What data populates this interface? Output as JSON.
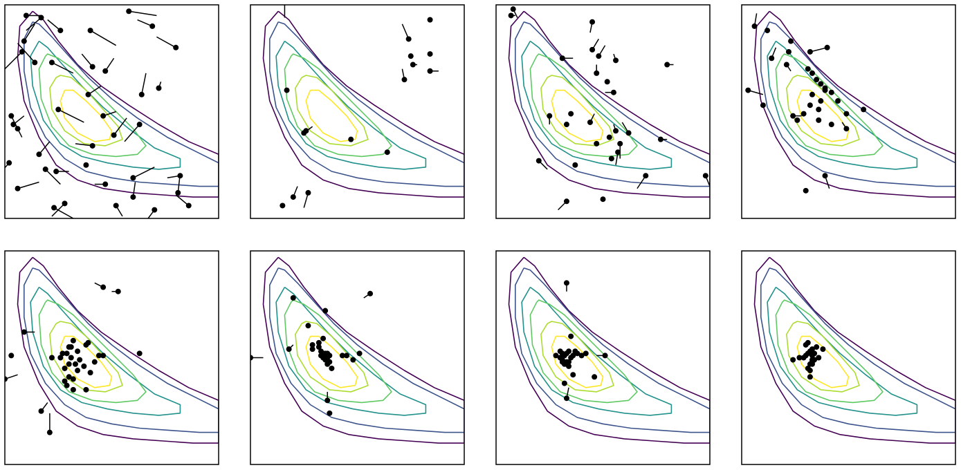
{
  "chart_data": {
    "type": "scatter",
    "description_free": true,
    "grid": false,
    "legend": "none",
    "panel_count": 8,
    "xlim": [
      0,
      1
    ],
    "ylim": [
      0,
      1
    ],
    "contour": {
      "levels": 6,
      "colors": [
        "#440154",
        "#3b528b",
        "#21918c",
        "#5ec962",
        "#addc30",
        "#fde725"
      ],
      "rings": [
        {
          "x": [
            0.13,
            0.07,
            0.06,
            0.09,
            0.16,
            0.24,
            0.34,
            0.46,
            0.6,
            0.74,
            0.88,
            1.0,
            1.0,
            0.86,
            0.72,
            0.58,
            0.45,
            0.34,
            0.25,
            0.18,
            0.13
          ],
          "y": [
            0.97,
            0.9,
            0.75,
            0.55,
            0.38,
            0.25,
            0.18,
            0.14,
            0.12,
            0.11,
            0.1,
            0.1,
            0.3,
            0.36,
            0.44,
            0.53,
            0.62,
            0.72,
            0.83,
            0.93,
            0.97
          ]
        },
        {
          "x": [
            0.13,
            0.09,
            0.09,
            0.12,
            0.19,
            0.28,
            0.38,
            0.5,
            0.63,
            0.77,
            0.91,
            1.0,
            1.0,
            0.9,
            0.76,
            0.62,
            0.5,
            0.39,
            0.3,
            0.22,
            0.16,
            0.13
          ],
          "y": [
            0.92,
            0.84,
            0.69,
            0.52,
            0.38,
            0.28,
            0.22,
            0.19,
            0.17,
            0.16,
            0.15,
            0.15,
            0.26,
            0.31,
            0.38,
            0.47,
            0.56,
            0.66,
            0.76,
            0.85,
            0.91,
            0.92
          ]
        },
        {
          "x": [
            0.16,
            0.12,
            0.13,
            0.18,
            0.26,
            0.36,
            0.48,
            0.6,
            0.72,
            0.82,
            0.82,
            0.7,
            0.58,
            0.46,
            0.36,
            0.27,
            0.2,
            0.16
          ],
          "y": [
            0.83,
            0.76,
            0.62,
            0.46,
            0.35,
            0.29,
            0.26,
            0.24,
            0.23,
            0.24,
            0.28,
            0.33,
            0.42,
            0.52,
            0.62,
            0.72,
            0.8,
            0.83
          ]
        },
        {
          "x": [
            0.19,
            0.16,
            0.17,
            0.22,
            0.3,
            0.41,
            0.52,
            0.62,
            0.66,
            0.6,
            0.5,
            0.4,
            0.32,
            0.25,
            0.2,
            0.19
          ],
          "y": [
            0.76,
            0.7,
            0.56,
            0.43,
            0.34,
            0.3,
            0.29,
            0.3,
            0.34,
            0.42,
            0.52,
            0.62,
            0.7,
            0.75,
            0.77,
            0.76
          ]
        },
        {
          "x": [
            0.24,
            0.21,
            0.22,
            0.28,
            0.37,
            0.47,
            0.55,
            0.53,
            0.46,
            0.38,
            0.31,
            0.26,
            0.24
          ],
          "y": [
            0.66,
            0.61,
            0.51,
            0.41,
            0.35,
            0.34,
            0.37,
            0.43,
            0.51,
            0.6,
            0.66,
            0.67,
            0.66
          ]
        },
        {
          "x": [
            0.28,
            0.26,
            0.28,
            0.34,
            0.42,
            0.49,
            0.5,
            0.45,
            0.38,
            0.32,
            0.28
          ],
          "y": [
            0.6,
            0.55,
            0.47,
            0.4,
            0.36,
            0.37,
            0.41,
            0.48,
            0.55,
            0.6,
            0.6
          ]
        }
      ]
    },
    "panels": [
      {
        "x": [
          0.1,
          0.17,
          0.26,
          0.08,
          0.58,
          0.4,
          0.09,
          0.14,
          0.22,
          0.8,
          0.69,
          0.64,
          0.03,
          0.06,
          0.16,
          0.24,
          0.41,
          0.51,
          0.72,
          0.46,
          0.63,
          0.38,
          0.19,
          0.23,
          0.41,
          0.02,
          0.06,
          0.28,
          0.47,
          0.6,
          0.82,
          0.81,
          0.52,
          0.7,
          0.04,
          0.25,
          0.39,
          0.47,
          0.6,
          0.86
        ],
        "y": [
          0.95,
          0.94,
          0.88,
          0.78,
          0.97,
          0.88,
          0.83,
          0.73,
          0.73,
          0.8,
          0.9,
          0.58,
          0.48,
          0.42,
          0.3,
          0.22,
          0.71,
          0.39,
          0.61,
          0.48,
          0.44,
          0.25,
          0.23,
          0.05,
          0.34,
          0.26,
          0.14,
          0.07,
          0.16,
          0.1,
          0.2,
          0.12,
          0.06,
          0.04,
          0.44,
          0.51,
          0.58,
          0.69,
          0.19,
          0.06
        ],
        "dx": [
          0.07,
          -0.07,
          -0.06,
          -0.08,
          0.13,
          0.12,
          0.05,
          -0.08,
          0.1,
          -0.09,
          -0.07,
          0.02,
          0.05,
          0.0,
          0.05,
          0.06,
          -0.05,
          0.06,
          0.01,
          0.06,
          -0.07,
          0.0,
          0.07,
          0.09,
          -0.08,
          -0.07,
          0.1,
          -0.06,
          -0.05,
          0.01,
          -0.06,
          0.01,
          0.03,
          -0.03,
          0.05,
          0.12,
          0.06,
          0.04,
          0.1,
          -0.06
        ],
        "dy": [
          0.0,
          -0.06,
          0.05,
          -0.08,
          -0.02,
          -0.07,
          0.08,
          0.09,
          -0.05,
          0.05,
          0.03,
          0.1,
          -0.1,
          0.01,
          0.06,
          0.0,
          0.06,
          0.08,
          0.03,
          0.02,
          -0.08,
          0.01,
          -0.07,
          -0.05,
          0.01,
          -0.08,
          0.03,
          -0.06,
          0.0,
          0.07,
          -0.01,
          0.09,
          -0.05,
          -0.04,
          0.04,
          -0.06,
          0.04,
          0.06,
          0.05,
          0.05
        ]
      },
      {
        "x": [
          0.16,
          0.17,
          0.25,
          0.47,
          0.64,
          0.84,
          0.76,
          0.74,
          0.84,
          0.26,
          0.2,
          0.15,
          0.27,
          0.72,
          0.84,
          0.75
        ],
        "y": [
          1.01,
          0.6,
          0.4,
          0.37,
          0.31,
          0.69,
          0.72,
          0.84,
          0.93,
          0.41,
          0.1,
          0.06,
          0.12,
          0.65,
          0.77,
          0.76
        ],
        "dx": [
          0.0,
          0.0,
          0.04,
          0.0,
          0.0,
          0.04,
          0.02,
          -0.03,
          0.0,
          0.0,
          0.02,
          0.0,
          -0.02,
          -0.01,
          0.0,
          0.0
        ],
        "dy": [
          -0.07,
          0.0,
          0.03,
          0.0,
          0.0,
          0.0,
          0.0,
          0.07,
          0.0,
          0.0,
          0.05,
          0.0,
          -0.07,
          0.05,
          0.0,
          0.0
        ]
      },
      {
        "x": [
          0.07,
          0.08,
          0.31,
          0.45,
          0.45,
          0.48,
          0.8,
          0.52,
          0.55,
          0.25,
          0.33,
          0.35,
          0.47,
          0.56,
          0.56,
          0.58,
          0.53,
          0.77,
          0.47,
          0.57,
          0.37,
          0.54,
          0.62,
          0.44,
          0.7,
          0.33,
          0.5,
          0.98,
          0.2
        ],
        "y": [
          0.95,
          0.98,
          0.75,
          0.92,
          0.79,
          0.76,
          0.72,
          0.64,
          0.59,
          0.48,
          0.44,
          0.49,
          0.68,
          0.74,
          0.41,
          0.35,
          0.38,
          0.37,
          0.35,
          0.31,
          0.25,
          0.28,
          0.4,
          0.45,
          0.2,
          0.08,
          0.09,
          0.2,
          0.27
        ],
        "dx": [
          0.02,
          0.02,
          0.05,
          -0.01,
          0.03,
          0.03,
          0.03,
          0.0,
          -0.04,
          0.0,
          0.0,
          0.0,
          0.0,
          -0.01,
          -0.01,
          0.0,
          0.0,
          0.03,
          0.0,
          -0.01,
          0.0,
          0.0,
          -0.03,
          0.02,
          -0.04,
          -0.04,
          0.0,
          0.02,
          0.04
        ],
        "dy": [
          0.0,
          -0.04,
          0.0,
          -0.05,
          0.05,
          0.05,
          0.0,
          0.0,
          0.0,
          -0.04,
          0.0,
          0.0,
          0.04,
          0.03,
          0.03,
          -0.07,
          0.0,
          0.0,
          0.0,
          -0.06,
          0.0,
          0.0,
          0.05,
          0.04,
          -0.06,
          -0.04,
          0.0,
          -0.05,
          -0.04
        ]
      },
      {
        "x": [
          0.06,
          0.12,
          0.14,
          0.21,
          0.4,
          0.31,
          0.33,
          0.35,
          0.37,
          0.39,
          0.42,
          0.45,
          0.49,
          0.57,
          0.49,
          0.36,
          0.29,
          0.26,
          0.33,
          0.32,
          0.37,
          0.39,
          0.42,
          0.36,
          0.24,
          0.32,
          0.22,
          0.23,
          0.03,
          0.1,
          0.3,
          0.39
        ],
        "y": [
          0.9,
          0.88,
          0.75,
          0.72,
          0.8,
          0.7,
          0.68,
          0.65,
          0.63,
          0.61,
          0.59,
          0.55,
          0.49,
          0.51,
          0.42,
          0.46,
          0.49,
          0.46,
          0.58,
          0.53,
          0.55,
          0.6,
          0.44,
          0.51,
          0.48,
          0.78,
          0.78,
          0.83,
          0.6,
          0.53,
          0.13,
          0.2
        ],
        "dx": [
          0.01,
          0.0,
          0.02,
          0.02,
          -0.08,
          0.0,
          0.0,
          0.0,
          0.0,
          0.0,
          0.0,
          0.0,
          0.0,
          0.0,
          -0.02,
          0.0,
          0.0,
          0.0,
          0.0,
          0.0,
          0.0,
          0.0,
          0.0,
          0.0,
          0.04,
          0.0,
          0.0,
          0.0,
          0.07,
          0.0,
          0.0,
          0.02
        ],
        "dy": [
          0.06,
          0.0,
          0.05,
          -0.03,
          -0.02,
          0.0,
          0.0,
          0.0,
          0.0,
          0.0,
          0.0,
          0.0,
          0.0,
          0.0,
          0.03,
          0.0,
          0.0,
          0.0,
          0.0,
          0.0,
          0.0,
          0.0,
          0.0,
          0.0,
          0.0,
          0.0,
          0.0,
          0.0,
          -0.02,
          0.0,
          0.0,
          -0.06
        ]
      },
      {
        "x": [
          0.31,
          0.31,
          0.39,
          0.44,
          0.34,
          0.3,
          0.38,
          0.46,
          0.26,
          0.22,
          0.32,
          0.29,
          0.35,
          0.42,
          0.37,
          0.33,
          0.3,
          0.4,
          0.29,
          0.32,
          0.28,
          0.3,
          0.34,
          0.38,
          0.28,
          0.27,
          0.09,
          0.0,
          0.17,
          0.32,
          0.21,
          0.46,
          0.53,
          0.63,
          0.03
        ],
        "y": [
          0.5,
          0.55,
          0.57,
          0.51,
          0.53,
          0.47,
          0.56,
          0.51,
          0.5,
          0.5,
          0.58,
          0.52,
          0.49,
          0.48,
          0.46,
          0.47,
          0.55,
          0.43,
          0.37,
          0.4,
          0.39,
          0.41,
          0.44,
          0.35,
          0.45,
          0.52,
          0.62,
          0.4,
          0.25,
          0.35,
          0.15,
          0.83,
          0.81,
          0.52,
          0.51
        ],
        "dx": [
          0.0,
          0.0,
          0.0,
          0.0,
          0.0,
          0.0,
          0.0,
          0.0,
          0.0,
          0.0,
          0.0,
          0.0,
          0.0,
          0.0,
          0.0,
          0.0,
          0.0,
          0.0,
          0.0,
          0.0,
          0.0,
          0.0,
          0.0,
          0.0,
          0.0,
          0.0,
          0.05,
          0.06,
          0.03,
          0.0,
          0.0,
          -0.04,
          -0.03,
          0.0,
          0.0
        ],
        "dy": [
          0.0,
          0.0,
          0.0,
          0.0,
          0.0,
          0.0,
          0.0,
          0.0,
          0.0,
          0.0,
          0.0,
          0.0,
          0.0,
          0.0,
          0.0,
          0.0,
          0.0,
          0.0,
          0.0,
          0.0,
          0.0,
          0.0,
          0.0,
          0.0,
          0.0,
          0.0,
          0.0,
          0.02,
          0.04,
          0.0,
          0.09,
          0.02,
          0.0,
          0.0,
          0.0
        ]
      },
      {
        "x": [
          0.32,
          0.32,
          0.33,
          0.33,
          0.34,
          0.34,
          0.35,
          0.35,
          0.36,
          0.36,
          0.37,
          0.37,
          0.34,
          0.29,
          0.36,
          0.38,
          0.43,
          0.45,
          0.48,
          0.51,
          0.36,
          0.27,
          0.2,
          0.0,
          0.37,
          0.56,
          0.35,
          0.29,
          0.18
        ],
        "y": [
          0.57,
          0.55,
          0.53,
          0.51,
          0.52,
          0.5,
          0.52,
          0.49,
          0.52,
          0.5,
          0.51,
          0.48,
          0.59,
          0.54,
          0.47,
          0.45,
          0.51,
          0.51,
          0.49,
          0.52,
          0.3,
          0.65,
          0.78,
          0.5,
          0.24,
          0.8,
          0.72,
          0.56,
          0.54
        ],
        "dx": [
          0.0,
          0.0,
          0.0,
          0.0,
          0.0,
          0.0,
          0.0,
          0.0,
          0.0,
          0.0,
          0.0,
          0.0,
          0.0,
          0.0,
          0.0,
          0.0,
          0.0,
          0.0,
          0.0,
          0.0,
          0.0,
          0.0,
          0.0,
          0.06,
          0.0,
          -0.03,
          0.0,
          0.0,
          0.02
        ],
        "dy": [
          0.0,
          0.0,
          0.0,
          0.0,
          0.0,
          0.0,
          0.0,
          0.0,
          0.0,
          0.0,
          0.0,
          0.0,
          0.0,
          0.0,
          0.0,
          0.0,
          0.0,
          0.0,
          0.0,
          0.0,
          0.04,
          0.0,
          0.0,
          0.0,
          0.0,
          -0.02,
          0.0,
          0.0,
          0.02
        ]
      },
      {
        "x": [
          0.28,
          0.3,
          0.31,
          0.32,
          0.33,
          0.33,
          0.34,
          0.35,
          0.34,
          0.33,
          0.32,
          0.31,
          0.3,
          0.31,
          0.34,
          0.36,
          0.37,
          0.38,
          0.4,
          0.42,
          0.51,
          0.36,
          0.32,
          0.33,
          0.46,
          0.35,
          0.33
        ],
        "y": [
          0.51,
          0.5,
          0.49,
          0.51,
          0.52,
          0.48,
          0.53,
          0.5,
          0.46,
          0.47,
          0.47,
          0.52,
          0.53,
          0.48,
          0.48,
          0.51,
          0.53,
          0.52,
          0.51,
          0.52,
          0.51,
          0.42,
          0.38,
          0.31,
          0.41,
          0.6,
          0.85
        ],
        "dx": [
          0.0,
          0.0,
          0.0,
          0.0,
          0.0,
          0.0,
          0.0,
          0.0,
          0.0,
          0.0,
          0.0,
          0.0,
          0.0,
          0.0,
          0.0,
          0.0,
          0.0,
          0.0,
          0.0,
          0.0,
          -0.04,
          0.0,
          0.0,
          0.01,
          0.0,
          0.0,
          0.0
        ],
        "dy": [
          0.0,
          0.0,
          0.0,
          0.0,
          0.0,
          0.0,
          0.0,
          0.0,
          0.0,
          0.0,
          0.0,
          0.0,
          0.0,
          0.0,
          0.0,
          0.0,
          0.0,
          0.0,
          0.0,
          0.0,
          0.0,
          0.0,
          0.0,
          0.05,
          0.0,
          0.0,
          -0.04
        ]
      },
      {
        "x": [
          0.24,
          0.27,
          0.29,
          0.31,
          0.32,
          0.33,
          0.33,
          0.34,
          0.34,
          0.35,
          0.32,
          0.32,
          0.31,
          0.33,
          0.3,
          0.36,
          0.38,
          0.32,
          0.31,
          0.33,
          0.3,
          0.33
        ],
        "y": [
          0.49,
          0.5,
          0.5,
          0.52,
          0.53,
          0.51,
          0.48,
          0.52,
          0.49,
          0.55,
          0.47,
          0.44,
          0.45,
          0.47,
          0.56,
          0.5,
          0.54,
          0.41,
          0.57,
          0.49,
          0.51,
          0.54
        ],
        "dx": [
          0.0,
          0.0,
          0.0,
          0.0,
          0.0,
          0.0,
          0.0,
          0.0,
          0.0,
          0.0,
          0.0,
          0.0,
          0.0,
          0.0,
          0.0,
          0.0,
          0.0,
          0.0,
          0.0,
          0.0,
          0.0,
          0.0
        ],
        "dy": [
          0.0,
          0.0,
          0.0,
          0.0,
          0.0,
          0.0,
          0.0,
          0.0,
          0.0,
          0.0,
          0.0,
          0.0,
          0.0,
          0.0,
          0.0,
          0.0,
          0.0,
          0.0,
          0.0,
          0.0,
          0.0,
          0.0
        ]
      }
    ]
  }
}
